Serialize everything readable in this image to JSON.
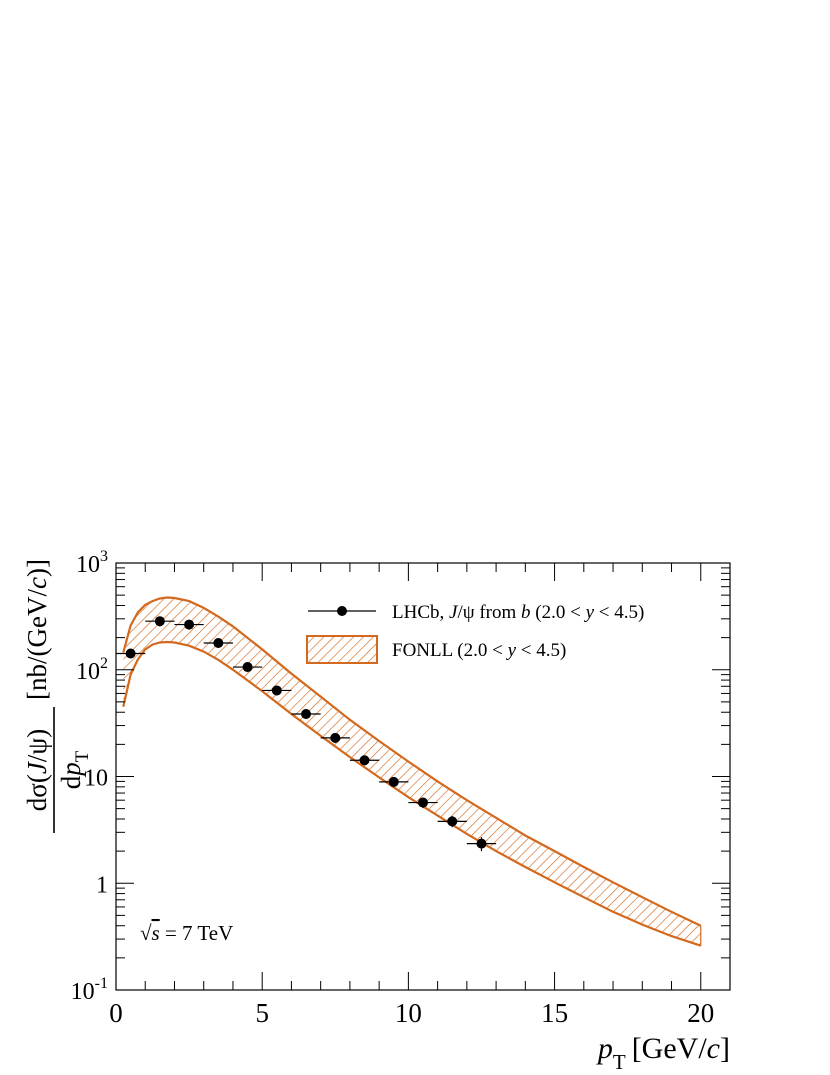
{
  "chart_data": {
    "type": "scatter",
    "title": "",
    "xlabel_main": "p",
    "xlabel_sub": "T",
    "xlabel_unit_open": "[GeV/",
    "xlabel_unit_var": "c",
    "xlabel_unit_close": "]",
    "ylabel_num_prefix": "dσ(",
    "ylabel_num_var": "J",
    "ylabel_num_suffix": "/ψ)",
    "ylabel_den_prefix": "d",
    "ylabel_den_var": "p",
    "ylabel_den_sub": "T",
    "ylabel_unit_open": "[nb/(GeV/",
    "ylabel_unit_var": "c",
    "ylabel_unit_close": ")]",
    "xlim": [
      0,
      21
    ],
    "ylim": [
      0.1,
      1000
    ],
    "yscale": "log",
    "x_ticks": [
      {
        "value": 0,
        "label": "0"
      },
      {
        "value": 5,
        "label": "5"
      },
      {
        "value": 10,
        "label": "10"
      },
      {
        "value": 15,
        "label": "15"
      },
      {
        "value": 20,
        "label": "20"
      }
    ],
    "y_ticks": [
      {
        "value": 0.1,
        "base": "10",
        "exp": "-1"
      },
      {
        "value": 1,
        "base": "1",
        "exp": ""
      },
      {
        "value": 10,
        "base": "10",
        "exp": ""
      },
      {
        "value": 100,
        "base": "10",
        "exp": "2"
      },
      {
        "value": 1000,
        "base": "10",
        "exp": "3"
      }
    ],
    "series": [
      {
        "name": "LHCb, J/ψ from b (2.0 < y < 4.5)",
        "kind": "points",
        "color": "#000000",
        "x": [
          0.5,
          1.5,
          2.5,
          3.5,
          4.5,
          5.5,
          6.5,
          7.5,
          8.5,
          9.5,
          10.5,
          11.5,
          12.5
        ],
        "x_err": [
          0.5,
          0.5,
          0.5,
          0.5,
          0.5,
          0.5,
          0.5,
          0.5,
          0.5,
          0.5,
          0.5,
          0.5,
          0.5
        ],
        "y": [
          142,
          285,
          265,
          178,
          106,
          64,
          38.5,
          23,
          14.2,
          8.9,
          5.7,
          3.8,
          2.35
        ],
        "y_err": [
          14,
          30,
          28,
          18,
          11,
          6.5,
          4,
          2.4,
          1.5,
          0.95,
          0.65,
          0.45,
          0.35
        ]
      },
      {
        "name": "FONLL (2.0 < y < 4.5)",
        "kind": "band",
        "color": "#d2691e",
        "x": [
          0.25,
          0.5,
          0.75,
          1.0,
          1.25,
          1.5,
          1.75,
          2.0,
          2.5,
          3.0,
          3.5,
          4.0,
          5.0,
          6.0,
          7.0,
          8.0,
          9.0,
          10.0,
          11.0,
          12.0,
          13.0,
          14.0,
          15.0,
          16.0,
          17.0,
          18.0,
          19.0,
          20.0
        ],
        "y_upper": [
          145,
          260,
          345,
          405,
          440,
          465,
          475,
          470,
          440,
          380,
          315,
          255,
          155,
          92,
          56,
          34,
          21.5,
          13.8,
          9.0,
          6.0,
          4.1,
          2.8,
          2.0,
          1.42,
          1.02,
          0.74,
          0.54,
          0.4
        ],
        "y_lower": [
          45,
          90,
          125,
          155,
          172,
          180,
          182,
          180,
          168,
          148,
          124,
          100,
          63,
          38.5,
          24,
          15.2,
          9.8,
          6.4,
          4.3,
          2.9,
          2.0,
          1.42,
          1.02,
          0.74,
          0.54,
          0.41,
          0.32,
          0.26
        ]
      }
    ],
    "legend": {
      "placement": "top-right",
      "entries": [
        {
          "prefix": "LHCb, ",
          "var1": "J",
          "mid": "/ψ from ",
          "var2": "b",
          "range_open": " (2.0 < ",
          "var3": "y",
          "range_close": " < 4.5)"
        },
        {
          "prefix": "FONLL (2.0 < ",
          "var3": "y",
          "range_close": " < 4.5)"
        }
      ]
    },
    "annotation": {
      "root": "√",
      "var": "s",
      "rest": " = 7 TeV"
    }
  }
}
